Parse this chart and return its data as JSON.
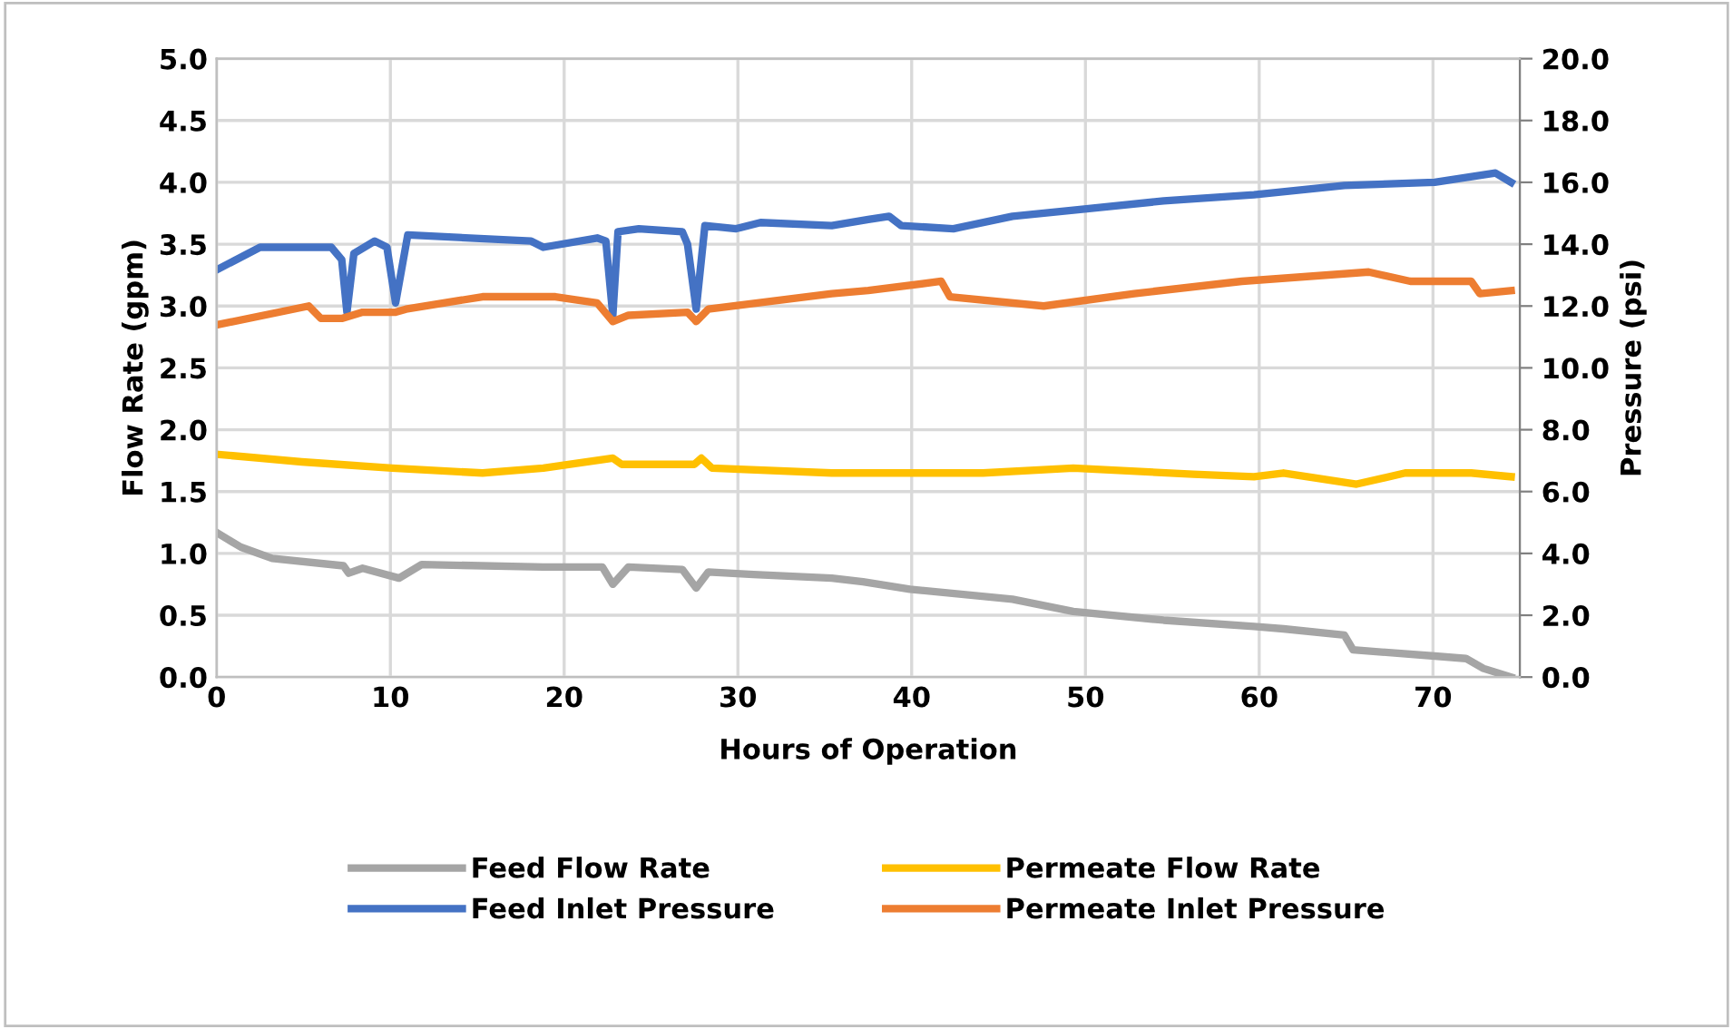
{
  "chart_data": {
    "type": "line",
    "xlabel": "Hours of Operation",
    "ylabel": "Flow Rate (gpm)",
    "y2label": "Pressure (psi)",
    "xlim": [
      0,
      75
    ],
    "xticks": [
      0,
      10,
      20,
      30,
      40,
      50,
      60,
      70
    ],
    "ylim": [
      0,
      5
    ],
    "yticks": [
      {
        "value": 0,
        "label": "0.0"
      },
      {
        "value": 0.5,
        "label": "0.5"
      },
      {
        "value": 1,
        "label": "1.0"
      },
      {
        "value": 1.5,
        "label": "1.5"
      },
      {
        "value": 2,
        "label": "2.0"
      },
      {
        "value": 2.5,
        "label": "2.5"
      },
      {
        "value": 3,
        "label": "3.0"
      },
      {
        "value": 3.5,
        "label": "3.5"
      },
      {
        "value": 4,
        "label": "4.0"
      },
      {
        "value": 4.5,
        "label": "4.5"
      },
      {
        "value": 5,
        "label": "5.0"
      }
    ],
    "y2lim": [
      0,
      20
    ],
    "y2ticks": [
      {
        "value": 0,
        "label": "0.0"
      },
      {
        "value": 2,
        "label": "2.0"
      },
      {
        "value": 4,
        "label": "4.0"
      },
      {
        "value": 6,
        "label": "6.0"
      },
      {
        "value": 8,
        "label": "8.0"
      },
      {
        "value": 10,
        "label": "10.0"
      },
      {
        "value": 12,
        "label": "12.0"
      },
      {
        "value": 14,
        "label": "14.0"
      },
      {
        "value": 16,
        "label": "16.0"
      },
      {
        "value": 18,
        "label": "18.0"
      },
      {
        "value": 20,
        "label": "20.0"
      }
    ],
    "grid": true,
    "legend": "bottom",
    "marker": "none",
    "line_style": "solid",
    "series": [
      {
        "name": "Feed Flow Rate",
        "color": "#a5a5a5",
        "x": [
          0.1,
          1.4,
          3.2,
          7.3,
          7.6,
          8.4,
          10.5,
          11.8,
          18.8,
          22.2,
          22.8,
          23.7,
          26.8,
          27.6,
          28.3,
          30.9,
          35.4,
          37.2,
          39.9,
          45.8,
          49.3,
          54.5,
          59.7,
          61.4,
          64.9,
          65.4,
          70.1,
          71.9,
          72.9,
          74.5
        ],
        "values": [
          1.16,
          1.05,
          0.96,
          0.9,
          0.84,
          0.88,
          0.8,
          0.91,
          0.89,
          0.89,
          0.75,
          0.89,
          0.87,
          0.72,
          0.85,
          0.83,
          0.8,
          0.77,
          0.71,
          0.63,
          0.53,
          0.46,
          0.41,
          0.39,
          0.34,
          0.22,
          0.17,
          0.15,
          0.07,
          0.0
        ]
      },
      {
        "name": "Permeate Flow Rate",
        "color": "#ffc000",
        "x": [
          0.1,
          4.9,
          10.1,
          15.3,
          18.8,
          22.8,
          23.3,
          27.5,
          27.9,
          28.5,
          35.4,
          37.2,
          44.1,
          49.3,
          56.2,
          59.7,
          61.4,
          65.6,
          68.4,
          72.2,
          74.5
        ],
        "values": [
          1.8,
          1.74,
          1.69,
          1.65,
          1.69,
          1.77,
          1.72,
          1.72,
          1.77,
          1.69,
          1.65,
          1.65,
          1.65,
          1.69,
          1.64,
          1.62,
          1.65,
          1.56,
          1.65,
          1.65,
          1.62
        ]
      },
      {
        "name": "Feed Inlet Pressure",
        "color": "#4472c4",
        "axis": "y2",
        "x": [
          0.1,
          2.5,
          6.6,
          7.2,
          7.5,
          7.9,
          9.1,
          9.8,
          10.3,
          11.0,
          18.1,
          18.8,
          21.9,
          22.4,
          22.8,
          23.1,
          24.3,
          26.8,
          27.1,
          27.6,
          28.1,
          29.9,
          31.3,
          35.4,
          37.5,
          38.7,
          39.4,
          42.4,
          45.8,
          49.3,
          54.5,
          59.7,
          64.9,
          70.1,
          73.6,
          74.5
        ],
        "values": [
          13.2,
          13.9,
          13.9,
          13.5,
          11.8,
          13.7,
          14.1,
          13.9,
          12.1,
          14.3,
          14.1,
          13.9,
          14.2,
          14.1,
          11.7,
          14.4,
          14.5,
          14.4,
          14.0,
          11.9,
          14.6,
          14.5,
          14.7,
          14.6,
          14.8,
          14.9,
          14.6,
          14.5,
          14.9,
          15.1,
          15.4,
          15.6,
          15.9,
          16.0,
          16.3,
          16.0
        ]
      },
      {
        "name": "Permeate Inlet Pressure",
        "color": "#ed7d31",
        "axis": "y2",
        "x": [
          0.1,
          5.3,
          6.0,
          7.2,
          8.4,
          10.3,
          10.9,
          15.3,
          19.5,
          21.9,
          22.8,
          23.7,
          27.1,
          27.6,
          28.3,
          35.4,
          37.5,
          41.7,
          42.2,
          47.6,
          52.8,
          59.0,
          66.3,
          68.7,
          72.2,
          72.7,
          74.5
        ],
        "values": [
          11.4,
          12.0,
          11.6,
          11.6,
          11.8,
          11.8,
          11.9,
          12.3,
          12.3,
          12.1,
          11.5,
          11.7,
          11.8,
          11.5,
          11.9,
          12.4,
          12.5,
          12.8,
          12.3,
          12.0,
          12.4,
          12.8,
          13.1,
          12.8,
          12.8,
          12.4,
          12.5
        ]
      }
    ]
  }
}
